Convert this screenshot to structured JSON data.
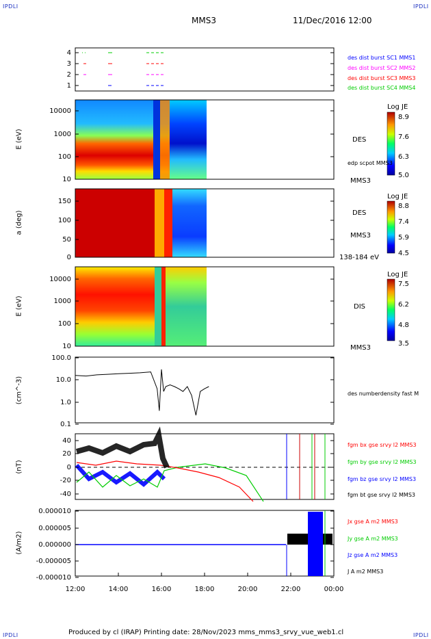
{
  "corner_label": "IPDLI",
  "header": {
    "spacecraft": "MMS3",
    "datetime": "11/Dec/2016 12:00"
  },
  "footer": {
    "text": "Produced by cl (IRAP)   Printing date: 28/Nov/2023   mms_mms3_srvy_vue_web1.cl"
  },
  "chart_data": [
    {
      "type": "scatter",
      "id": "burst",
      "ylim": [
        0.6,
        4.4
      ],
      "yticks": [
        "1",
        "2",
        "3",
        "4"
      ],
      "legend": [
        {
          "label": "des dist burst SC1 MMS1",
          "color": "#0000ff"
        },
        {
          "label": "des dist burst SC2 MMS2",
          "color": "#ff00ff"
        },
        {
          "label": "des dist burst SC3 MMS3",
          "color": "#ff0000"
        },
        {
          "label": "des dist burst SC4 MMS4",
          "color": "#00cc00"
        }
      ]
    },
    {
      "type": "heatmap",
      "id": "des-energy",
      "ylabel": "E (eV)",
      "yticks": [
        "10000",
        "1000",
        "100",
        "10"
      ],
      "labels": [
        "DES",
        "edp scpot MMS3",
        "MMS3"
      ],
      "colorbar": {
        "title": "Log JE",
        "ticks": [
          "8.9",
          "7.6",
          "6.3",
          "5.0"
        ]
      }
    },
    {
      "type": "heatmap",
      "id": "des-pitch",
      "ylabel": "a (deg)",
      "yticks": [
        "150",
        "100",
        "50",
        "0"
      ],
      "labels": [
        "DES",
        "MMS3",
        "138-184 eV"
      ],
      "colorbar": {
        "title": "Log JE",
        "ticks": [
          "8.8",
          "7.4",
          "5.9",
          "4.5"
        ]
      }
    },
    {
      "type": "heatmap",
      "id": "dis-energy",
      "ylabel": "E (eV)",
      "yticks": [
        "10000",
        "1000",
        "100",
        "10"
      ],
      "labels": [
        "DIS",
        "MMS3"
      ],
      "colorbar": {
        "title": "Log JE",
        "ticks": [
          "7.5",
          "6.2",
          "4.8",
          "3.5"
        ]
      }
    },
    {
      "type": "line",
      "id": "density",
      "ylabel": "(cm^-3)",
      "yticks": [
        "100.0",
        "10.0",
        "1.0",
        "0.1"
      ],
      "legend": [
        {
          "label": "des numberdensity fast M",
          "color": "#000000"
        }
      ],
      "x": [
        12.0,
        12.5,
        13.0,
        13.5,
        14.0,
        14.5,
        15.0,
        15.5,
        15.8,
        15.9,
        16.0,
        16.1,
        16.2,
        16.4,
        16.6,
        16.8,
        17.0,
        17.2,
        17.4,
        17.6,
        17.8,
        18.0,
        18.2
      ],
      "y": [
        16,
        15,
        17,
        18,
        19,
        20,
        21,
        23,
        4,
        0.4,
        30,
        3,
        5,
        6,
        5,
        4,
        3,
        5,
        2,
        0.25,
        3,
        4,
        5
      ]
    },
    {
      "type": "line",
      "id": "fgm",
      "ylabel": "(nT)",
      "ylim": [
        -48,
        48
      ],
      "yticks": [
        "40",
        "20",
        "0",
        "-20",
        "-40"
      ],
      "legend": [
        {
          "label": "fgm bx gse srvy l2 MMS3",
          "color": "#ff0000"
        },
        {
          "label": "fgm by gse srvy l2 MMS3",
          "color": "#00cc00"
        },
        {
          "label": "fgm bz gse srvy l2 MMS3",
          "color": "#0000ff"
        },
        {
          "label": "fgm bt gse srvy l2 MMS3",
          "color": "#000000"
        }
      ]
    },
    {
      "type": "line",
      "id": "current",
      "ylabel": "(A/m2)",
      "ylim": [
        -1e-05,
        1e-05
      ],
      "yticks": [
        "0.000010",
        "0.000005",
        "0.000000",
        "-0.000005",
        "-0.000010"
      ],
      "legend": [
        {
          "label": "Jx gse A m2 MMS3",
          "color": "#ff0000"
        },
        {
          "label": "Jy gse A m2 MMS3",
          "color": "#00cc00"
        },
        {
          "label": "Jz gse A m2 MMS3",
          "color": "#0000ff"
        },
        {
          "label": "J A m2 MMS3",
          "color": "#000000"
        }
      ]
    }
  ],
  "xaxis": {
    "ticks": [
      "12:00",
      "14:00",
      "16:00",
      "18:00",
      "20:00",
      "22:00",
      "00:00"
    ]
  }
}
